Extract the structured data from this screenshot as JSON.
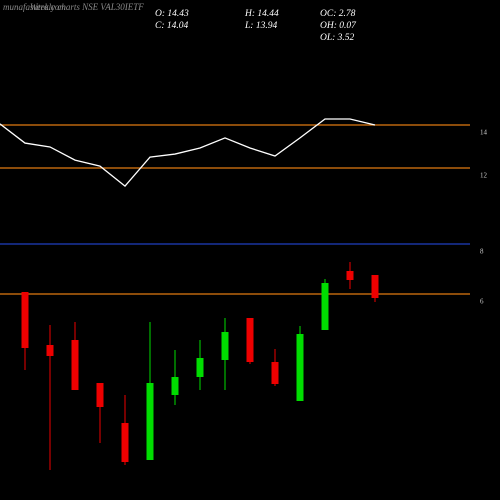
{
  "header": {
    "site": "munafasutra.com",
    "title": "Weekly charts NSE VAL30IETF",
    "info": [
      [
        "O: 14.43",
        "H: 14.44",
        "OC: 2.78"
      ],
      [
        "C: 14.04",
        "L: 13.94",
        "OH: 0.07"
      ],
      [
        "",
        "",
        "OL: 3.52"
      ]
    ]
  },
  "chart_data": [
    {
      "type": "line",
      "color": "#ffffff",
      "x": [
        0,
        1,
        2,
        3,
        4,
        5,
        6,
        7,
        8,
        9,
        10,
        11,
        12,
        13,
        14,
        15
      ],
      "values": [
        14.05,
        13.16,
        12.98,
        12.37,
        12.09,
        11.16,
        12.51,
        12.65,
        12.93,
        13.4,
        12.93,
        12.56,
        13.4,
        14.28,
        14.28,
        14
      ],
      "xlim": [
        0,
        20
      ],
      "ylim": [
        9.12,
        19.81
      ],
      "yticks": [
        14,
        12
      ],
      "grid_colors": [
        "#e07a10",
        "#e07a10"
      ]
    },
    {
      "type": "candlestick",
      "up_color": "#00dd00",
      "down_color": "#ee0000",
      "x": [
        1,
        2,
        3,
        4,
        5,
        6,
        7,
        8,
        9,
        10,
        11,
        12,
        13,
        14,
        15
      ],
      "open": [
        6.08,
        3.96,
        4.16,
        2.44,
        0.84,
        -0.64,
        1.96,
        2.68,
        3.36,
        5.04,
        3.28,
        1.72,
        4.56,
        6.92,
        6.76
      ],
      "high": [
        6.08,
        4.76,
        4.88,
        2.44,
        1.96,
        4.88,
        3.76,
        4.16,
        5.04,
        5.04,
        3.8,
        4.72,
        6.6,
        7.28,
        6.76
      ],
      "low": [
        2.96,
        -1.04,
        2.16,
        0.04,
        -0.84,
        -0.64,
        1.56,
        2.16,
        2.16,
        3.2,
        2.32,
        1.72,
        4.56,
        6.2,
        5.68
      ],
      "close": [
        3.84,
        3.52,
        2.16,
        1.48,
        -0.72,
        2.44,
        2.68,
        3.44,
        4.48,
        3.28,
        2.4,
        4.4,
        6.44,
        6.56,
        5.84
      ],
      "xlim": [
        0,
        20
      ],
      "ylim": [
        -2.24,
        8.56
      ],
      "yticks": [
        8,
        6
      ],
      "grid_colors": [
        "#1f3fbf",
        "#e07a10"
      ]
    }
  ]
}
